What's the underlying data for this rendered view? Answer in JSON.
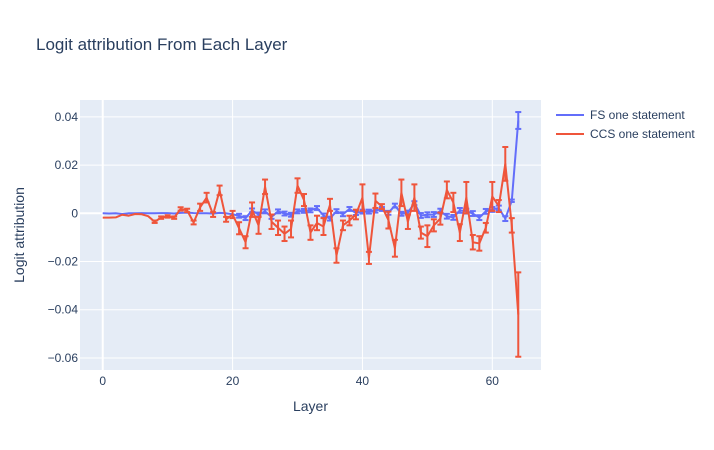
{
  "chart_data": {
    "type": "line",
    "title": "Logit attribution From Each Layer",
    "xlabel": "Layer",
    "ylabel": "Logit attribution",
    "xlim": [
      -3.5,
      67.5
    ],
    "ylim": [
      -0.065,
      0.047
    ],
    "xticks": [
      0,
      20,
      40,
      60
    ],
    "yticks": [
      0.04,
      0.02,
      0,
      -0.02,
      -0.04,
      -0.06
    ],
    "ytick_labels": [
      "0.04",
      "0.02",
      "0",
      "−0.02",
      "−0.04",
      "−0.06"
    ],
    "grid": true,
    "legend_position": "top-right",
    "error_bars": true,
    "series": [
      {
        "name": "FS one statement",
        "color": "#636efa",
        "x": [
          0,
          1,
          2,
          3,
          4,
          5,
          6,
          7,
          8,
          9,
          10,
          11,
          12,
          13,
          14,
          15,
          16,
          17,
          18,
          19,
          20,
          21,
          22,
          23,
          24,
          25,
          26,
          27,
          28,
          29,
          30,
          31,
          32,
          33,
          34,
          35,
          36,
          37,
          38,
          39,
          40,
          41,
          42,
          43,
          44,
          45,
          46,
          47,
          48,
          49,
          50,
          51,
          52,
          53,
          54,
          55,
          56,
          57,
          58,
          59,
          60,
          61,
          62,
          63,
          64
        ],
        "y": [
          0,
          -0.0001,
          0,
          -0.0003,
          0,
          0,
          0.0001,
          0,
          0,
          0.0001,
          0.0001,
          -0.0001,
          0.0002,
          0.0003,
          0.0001,
          0,
          0,
          -0.0001,
          0.0002,
          0,
          -0.0004,
          -0.001,
          -0.002,
          0.0012,
          -0.0005,
          0.0008,
          -0.0015,
          0.0008,
          -0.0001,
          -0.0006,
          0.0008,
          0.001,
          0.0012,
          0.0022,
          -0.0009,
          -0.0022,
          0.0009,
          -0.0004,
          0.0018,
          0.0001,
          0.0007,
          0.0007,
          0.0011,
          0.0018,
          0.0002,
          0.0032,
          -0.0002,
          0.0003,
          0.0042,
          -0.0009,
          -0.0006,
          -0.0005,
          0.0009,
          -0.0012,
          -0.0017,
          0.0012,
          0.0009,
          -0.0001,
          -0.0018,
          0.0008,
          0.0016,
          0.0022,
          -0.0022,
          0.0052,
          0.0385
        ],
        "err": [
          0,
          0,
          0,
          0,
          0,
          0,
          0,
          0,
          0,
          0,
          0,
          0,
          0,
          0,
          0,
          0,
          0,
          0,
          0,
          0,
          0,
          0.0008,
          0.0008,
          0.0008,
          0.0008,
          0.0008,
          0.0008,
          0.0008,
          0.0008,
          0.0008,
          0.0008,
          0.0008,
          0.0008,
          0.0008,
          0.0008,
          0.0008,
          0.0008,
          0.0008,
          0.0008,
          0.0008,
          0.0008,
          0.0008,
          0.0008,
          0.0008,
          0.0008,
          0.0008,
          0.0008,
          0.0008,
          0.0008,
          0.001,
          0.001,
          0.001,
          0.001,
          0.001,
          0.001,
          0.001,
          0.001,
          0.001,
          0.001,
          0.001,
          0.001,
          0.001,
          0.001,
          0.0005,
          0.0035
        ]
      },
      {
        "name": "CCS one statement",
        "color": "#ef553b",
        "x": [
          0,
          1,
          2,
          3,
          4,
          5,
          6,
          7,
          8,
          9,
          10,
          11,
          12,
          13,
          14,
          15,
          16,
          17,
          18,
          19,
          20,
          21,
          22,
          23,
          24,
          25,
          26,
          27,
          28,
          29,
          30,
          31,
          32,
          33,
          34,
          35,
          36,
          37,
          38,
          39,
          40,
          41,
          42,
          43,
          44,
          45,
          46,
          47,
          48,
          49,
          50,
          51,
          52,
          53,
          54,
          55,
          56,
          57,
          58,
          59,
          60,
          61,
          62,
          63,
          64
        ],
        "y": [
          -0.0018,
          -0.0018,
          -0.0017,
          -0.0006,
          -0.001,
          -0.0003,
          -0.0004,
          -0.0012,
          -0.0035,
          -0.0018,
          -0.0013,
          -0.0018,
          0.0018,
          0.0012,
          -0.0038,
          0.0025,
          0.0065,
          -0.0005,
          0.0095,
          -0.0025,
          -0.0005,
          -0.0062,
          -0.012,
          0.0015,
          -0.005,
          0.011,
          -0.0035,
          -0.006,
          -0.0085,
          -0.0065,
          0.0115,
          0.0055,
          -0.008,
          -0.004,
          -0.0055,
          0.0035,
          -0.0175,
          -0.005,
          -0.003,
          -0.0005,
          0.0065,
          -0.0185,
          0.0052,
          0.0028,
          -0.0028,
          -0.0145,
          0.0085,
          -0.0035,
          0.0065,
          -0.008,
          -0.0095,
          -0.005,
          -0.0022,
          0.0097,
          0.0045,
          -0.008,
          0.0065,
          -0.012,
          -0.0125,
          -0.006,
          0.007,
          0.003,
          0.0205,
          -0.005,
          -0.042
        ],
        "err": [
          0,
          0,
          0,
          0,
          0,
          0,
          0,
          0,
          0.0005,
          0.0005,
          0.0005,
          0.0005,
          0.0007,
          0.0007,
          0.0008,
          0.0015,
          0.002,
          0.001,
          0.002,
          0.001,
          0.0015,
          0.0025,
          0.0025,
          0.003,
          0.0035,
          0.003,
          0.003,
          0.003,
          0.003,
          0.0035,
          0.003,
          0.0025,
          0.003,
          0.003,
          0.0035,
          0.0025,
          0.003,
          0.002,
          0.002,
          0.002,
          0.0055,
          0.0025,
          0.003,
          0.001,
          0.0035,
          0.0035,
          0.0055,
          0.003,
          0.0055,
          0.0025,
          0.0045,
          0.0025,
          0.0025,
          0.0035,
          0.004,
          0.0035,
          0.0065,
          0.003,
          0.003,
          0.002,
          0.006,
          0.0025,
          0.007,
          0.003,
          0.0175
        ]
      }
    ]
  }
}
